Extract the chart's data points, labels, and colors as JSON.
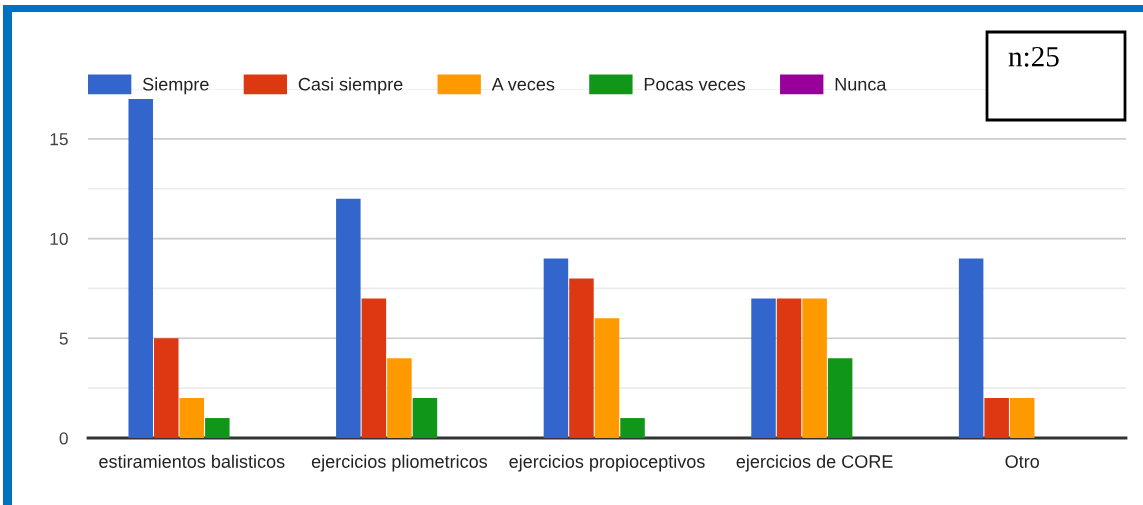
{
  "chart_data": {
    "type": "bar",
    "categories": [
      "estiramientos balisticos",
      "ejercicios pliometricos",
      "ejercicios propioceptivos",
      "ejercicios de CORE",
      "Otro"
    ],
    "series": [
      {
        "name": "Siempre",
        "color": "#3366cc",
        "values": [
          17,
          12,
          9,
          7,
          9
        ]
      },
      {
        "name": "Casi siempre",
        "color": "#dc3912",
        "values": [
          5,
          7,
          8,
          7,
          2
        ]
      },
      {
        "name": "A veces",
        "color": "#ff9900",
        "values": [
          2,
          4,
          6,
          7,
          2
        ]
      },
      {
        "name": "Pocas veces",
        "color": "#109618",
        "values": [
          1,
          2,
          1,
          4,
          null
        ]
      },
      {
        "name": "Nunca",
        "color": "#990099",
        "values": [
          0,
          0,
          0,
          0,
          null
        ]
      }
    ],
    "ylim": [
      0,
      17.5
    ],
    "yticks": [
      0,
      {
        "value": 2.5,
        "label": null
      },
      5,
      {
        "value": 7.5,
        "label": null
      },
      10,
      {
        "value": 12.5,
        "label": null
      },
      15,
      {
        "value": 17.5,
        "label": null
      }
    ],
    "grid": "y",
    "legend": "top left",
    "annotations": [
      "n:25"
    ]
  }
}
